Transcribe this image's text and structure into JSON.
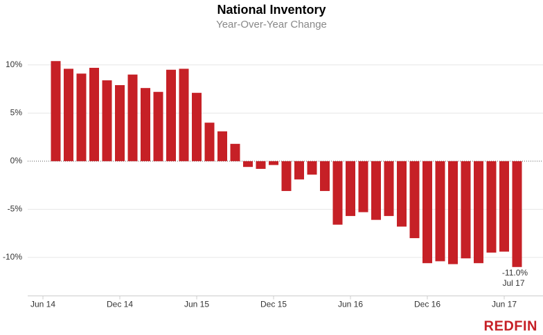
{
  "chart_data": {
    "type": "bar",
    "title": "National Inventory",
    "subtitle": "Year-Over-Year Change",
    "categories": [
      "Jun 14",
      null,
      null,
      null,
      null,
      null,
      "Dec 14",
      null,
      null,
      null,
      null,
      null,
      "Jun 15",
      null,
      null,
      null,
      null,
      null,
      "Dec 15",
      null,
      null,
      null,
      null,
      null,
      "Jun 16",
      null,
      null,
      null,
      null,
      null,
      "Dec 16",
      null,
      null,
      null,
      null,
      null,
      "Jun 17",
      null
    ],
    "values": [
      null,
      10.4,
      9.6,
      9.1,
      9.7,
      8.4,
      7.9,
      9.0,
      7.6,
      7.2,
      9.5,
      9.6,
      7.1,
      4.0,
      3.1,
      1.8,
      -0.6,
      -0.8,
      -0.4,
      -3.1,
      -1.9,
      -1.4,
      -3.1,
      -6.6,
      -5.7,
      -5.3,
      -6.1,
      -5.7,
      -6.8,
      -8.0,
      -10.6,
      -10.4,
      -10.7,
      -10.1,
      -10.6,
      -9.5,
      -9.4,
      -11.0
    ],
    "value_labels": [
      null,
      null,
      null,
      null,
      null,
      null,
      null,
      null,
      null,
      null,
      null,
      null,
      null,
      null,
      null,
      null,
      null,
      null,
      null,
      null,
      null,
      null,
      null,
      null,
      null,
      null,
      null,
      null,
      null,
      null,
      null,
      null,
      null,
      null,
      null,
      null,
      null,
      "-11.0%"
    ],
    "annotation": "Jul 17",
    "color": "#c62026",
    "ylim": [
      -14,
      12
    ],
    "yticks": [
      {
        "value": -10,
        "label": "-10%"
      },
      {
        "value": -5,
        "label": "-5%"
      },
      {
        "value": 0,
        "label": "0%"
      },
      {
        "value": 5,
        "label": "5%"
      },
      {
        "value": 10,
        "label": "10%"
      }
    ],
    "grid": true,
    "logo": "REDFIN"
  }
}
